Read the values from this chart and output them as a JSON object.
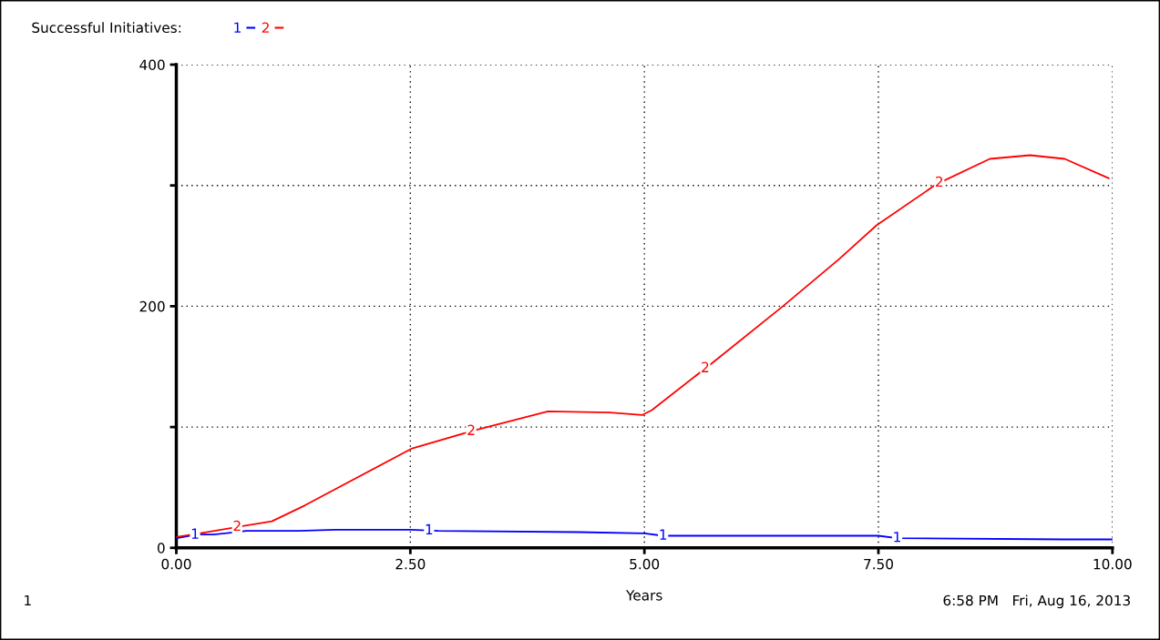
{
  "chart_data": {
    "type": "line",
    "title": "Successful Initiatives:",
    "xlabel": "Years",
    "xlim": [
      0,
      10
    ],
    "xticks": [
      {
        "value": 0,
        "label": "0.00"
      },
      {
        "value": 2.5,
        "label": "2.50"
      },
      {
        "value": 5,
        "label": "5.00"
      },
      {
        "value": 7.5,
        "label": "7.50"
      },
      {
        "value": 10,
        "label": "10.00"
      }
    ],
    "ylim": [
      0,
      400
    ],
    "yticks": [
      0,
      {
        "value": 100,
        "label": null
      },
      200,
      {
        "value": 300,
        "label": null
      },
      400
    ],
    "grid": true,
    "legend": "top left",
    "line_style": "solid",
    "marker": "none",
    "series": [
      {
        "name": "1",
        "color": "#0000ff",
        "x": [
          0,
          0.22,
          0.4,
          0.75,
          1.3,
          1.7,
          2.5,
          2.8,
          4.3,
          5.0,
          5.2,
          7.5,
          7.7,
          9.5,
          10
        ],
        "values": [
          8,
          11,
          11,
          14,
          14,
          15,
          15,
          14,
          13,
          12,
          10,
          10,
          8,
          7,
          7
        ]
      },
      {
        "name": "2",
        "color": "#ff0000",
        "x": [
          0,
          0.32,
          1.02,
          1.37,
          2.51,
          3.17,
          3.97,
          4.63,
          4.98,
          5.08,
          5.74,
          6.48,
          7.08,
          7.48,
          8.12,
          8.69,
          9.12,
          9.49,
          9.96
        ],
        "values": [
          9,
          13,
          22,
          35,
          82,
          97,
          113,
          112,
          110,
          114,
          154,
          200,
          239,
          267,
          301,
          322,
          325,
          322,
          306
        ]
      }
    ],
    "annotations": [
      "1",
      "6:58 PM   Fri, Aug 16, 2013"
    ]
  }
}
